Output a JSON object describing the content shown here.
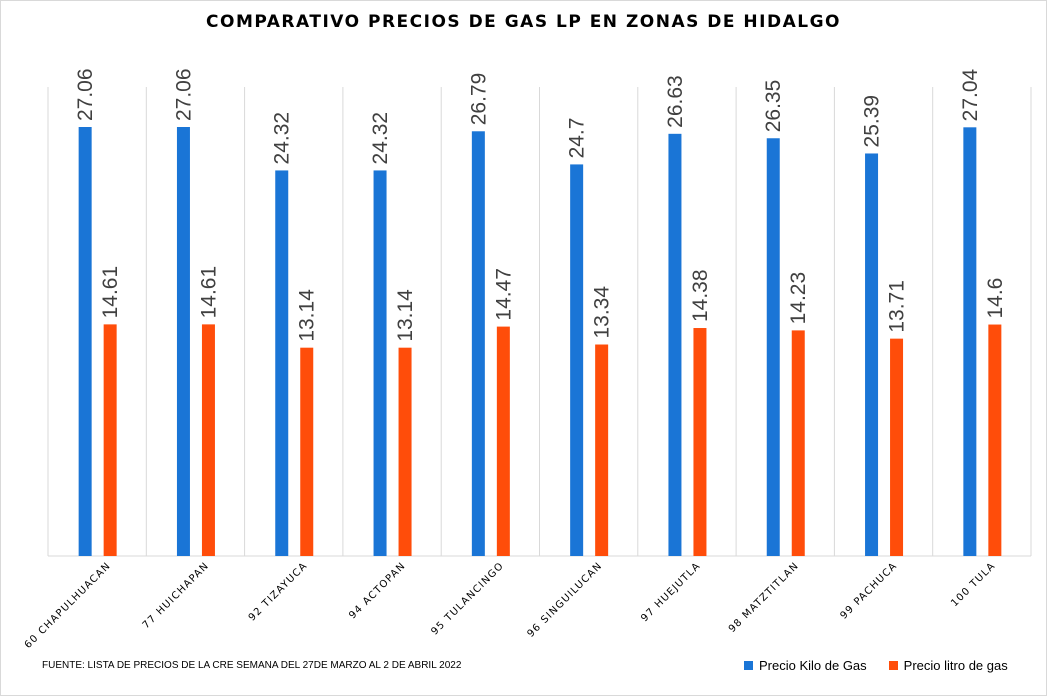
{
  "chart_data": {
    "type": "bar",
    "title": "COMPARATIVO PRECIOS DE GAS LP EN ZONAS DE HIDALGO",
    "categories": [
      "60 CHAPULHUACAN",
      "77 HUICHAPAN",
      "92 TIZAYUCA",
      "94 ACTOPAN",
      "95 TULANCINGO",
      "96 SINGUILUCAN",
      "97 HUEJUTLA",
      "98 MATZTITLAN",
      "99 PACHUCA",
      "100 TULA"
    ],
    "series": [
      {
        "name": "Precio Kilo de Gas",
        "color": "#1a75d6",
        "values": [
          27.06,
          27.06,
          24.32,
          24.32,
          26.79,
          24.7,
          26.63,
          26.35,
          25.39,
          27.04
        ],
        "labels": [
          "27.06",
          "27.06",
          "24.32",
          "24.32",
          "26.79",
          "24.7",
          "26.63",
          "26.35",
          "25.39",
          "27.04"
        ]
      },
      {
        "name": "Precio litro de gas",
        "color": "#ff4d0a",
        "values": [
          14.61,
          14.61,
          13.14,
          13.14,
          14.47,
          13.34,
          14.38,
          14.23,
          13.71,
          14.6
        ],
        "labels": [
          "14.61",
          "14.61",
          "13.14",
          "13.14",
          "14.47",
          "13.34",
          "14.38",
          "14.23",
          "13.71",
          "14.6"
        ]
      }
    ],
    "ylim": [
      0,
      30
    ],
    "grid": "vertical category separators",
    "legend": "bottom-right",
    "data_labels": "rotated vertical above bars"
  },
  "footer": {
    "source": "FUENTE: LISTA DE PRECIOS DE LA CRE SEMANA DEL 27DE MARZO AL 2 DE ABRIL 2022"
  }
}
